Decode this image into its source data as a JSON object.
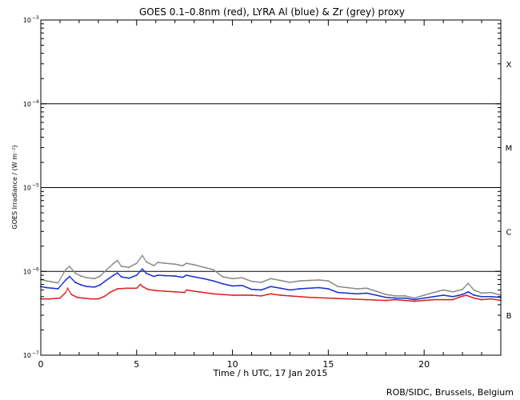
{
  "chart_data": {
    "type": "scatter",
    "title": "GOES 0.1–0.8nm (red), LYRA Al (blue) & Zr (grey) proxy",
    "xlabel": "Time / h UTC, 17 Jan 2015",
    "ylabel": "GOES Irradiance / (W m⁻²)",
    "xlim": [
      0,
      24
    ],
    "ylim": [
      1e-07,
      0.001
    ],
    "yscale": "log",
    "x_ticks": [
      0,
      5,
      10,
      15,
      20
    ],
    "y_tick_exponents": [
      -7,
      -6,
      -5,
      -4,
      -3
    ],
    "y_tick_base": "10",
    "grid": "flare-class lines at 1e-6, 1e-5, 1e-4",
    "flare_classes": [
      {
        "label": "B",
        "y": 3e-07
      },
      {
        "label": "C",
        "y": 3e-06
      },
      {
        "label": "M",
        "y": 3e-05
      },
      {
        "label": "X",
        "y": 0.0003
      }
    ],
    "class_lines": [
      1e-06,
      1e-05,
      0.0001
    ],
    "series": [
      {
        "color": "#e02020",
        "x": [
          0,
          0.5,
          1.0,
          1.3,
          1.4,
          1.6,
          1.9,
          2.2,
          2.6,
          3.0,
          3.3,
          3.6,
          4.0,
          4.5,
          5.0,
          5.2,
          5.3,
          5.6,
          6.0,
          6.5,
          7.0,
          7.5,
          7.6,
          8.0,
          9.0,
          10.0,
          11.0,
          11.5,
          12.0,
          12.5,
          13.0,
          14.0,
          15.0,
          16.0,
          17.0,
          18.0,
          18.5,
          19.0,
          19.5,
          20.0,
          20.5,
          21.0,
          21.5,
          21.8,
          22.2,
          22.6,
          23.0,
          23.5,
          24.0
        ],
        "values": [
          4.7e-07,
          4.7e-07,
          4.8e-07,
          5.6e-07,
          6.3e-07,
          5.3e-07,
          4.9e-07,
          4.8e-07,
          4.7e-07,
          4.7e-07,
          5e-07,
          5.6e-07,
          6.2e-07,
          6.3e-07,
          6.3e-07,
          7e-07,
          6.6e-07,
          6.1e-07,
          5.9e-07,
          5.8e-07,
          5.7e-07,
          5.6e-07,
          6e-07,
          5.8e-07,
          5.4e-07,
          5.2e-07,
          5.2e-07,
          5.1e-07,
          5.4e-07,
          5.2e-07,
          5.1e-07,
          4.9e-07,
          4.8e-07,
          4.7e-07,
          4.6e-07,
          4.5e-07,
          4.6e-07,
          4.5e-07,
          4.4e-07,
          4.5e-07,
          4.6e-07,
          4.6e-07,
          4.6e-07,
          4.9e-07,
          5.2e-07,
          4.8e-07,
          4.6e-07,
          4.7e-07,
          4.5e-07
        ]
      },
      {
        "color": "#1a2fd6",
        "x": [
          0,
          0.3,
          0.6,
          0.9,
          1.3,
          1.5,
          1.8,
          2.1,
          2.4,
          2.8,
          3.1,
          3.4,
          3.8,
          4.0,
          4.2,
          4.6,
          5.0,
          5.3,
          5.5,
          5.9,
          6.1,
          6.5,
          7.0,
          7.4,
          7.6,
          8.0,
          8.5,
          9.0,
          9.5,
          10.0,
          10.5,
          11.0,
          11.5,
          12.0,
          12.5,
          13.0,
          13.5,
          14.0,
          14.5,
          15.0,
          15.5,
          16.0,
          16.5,
          17.0,
          17.5,
          18.0,
          18.5,
          19.0,
          19.5,
          20.0,
          20.5,
          21.0,
          21.5,
          22.0,
          22.3,
          22.6,
          23.0,
          23.5,
          24.0
        ],
        "values": [
          6.6e-07,
          6.4e-07,
          6.3e-07,
          6.2e-07,
          7.9e-07,
          8.7e-07,
          7.4e-07,
          6.9e-07,
          6.6e-07,
          6.5e-07,
          6.9e-07,
          7.8e-07,
          9e-07,
          9.6e-07,
          8.6e-07,
          8.3e-07,
          9e-07,
          1.07e-06,
          9.5e-07,
          8.7e-07,
          9e-07,
          8.9e-07,
          8.8e-07,
          8.5e-07,
          9e-07,
          8.6e-07,
          8.2e-07,
          7.7e-07,
          7.1e-07,
          6.7e-07,
          6.8e-07,
          6.1e-07,
          6e-07,
          6.6e-07,
          6.3e-07,
          6e-07,
          6.2e-07,
          6.3e-07,
          6.4e-07,
          6.2e-07,
          5.6e-07,
          5.5e-07,
          5.4e-07,
          5.5e-07,
          5.2e-07,
          4.9e-07,
          4.8e-07,
          4.8e-07,
          4.6e-07,
          4.8e-07,
          5e-07,
          5.2e-07,
          5e-07,
          5.3e-07,
          5.7e-07,
          5.2e-07,
          5e-07,
          5e-07,
          4.9e-07
        ]
      },
      {
        "color": "#8a8a8a",
        "x": [
          0,
          0.3,
          0.6,
          0.9,
          1.3,
          1.5,
          1.8,
          2.1,
          2.4,
          2.8,
          3.1,
          3.4,
          3.8,
          4.0,
          4.2,
          4.6,
          5.0,
          5.3,
          5.5,
          5.9,
          6.1,
          6.5,
          7.0,
          7.4,
          7.6,
          8.0,
          8.5,
          9.0,
          9.5,
          10.0,
          10.5,
          11.0,
          11.5,
          12.0,
          12.5,
          13.0,
          13.5,
          14.0,
          14.5,
          15.0,
          15.5,
          16.0,
          16.5,
          17.0,
          17.5,
          18.0,
          18.5,
          19.0,
          19.5,
          20.0,
          20.5,
          21.0,
          21.5,
          22.0,
          22.3,
          22.6,
          23.0,
          23.5,
          24.0
        ],
        "values": [
          8e-07,
          7.7e-07,
          7.5e-07,
          7.3e-07,
          1.05e-06,
          1.15e-06,
          9.5e-07,
          8.8e-07,
          8.4e-07,
          8.2e-07,
          8.8e-07,
          1.03e-06,
          1.25e-06,
          1.35e-06,
          1.15e-06,
          1.12e-06,
          1.25e-06,
          1.55e-06,
          1.3e-06,
          1.17e-06,
          1.28e-06,
          1.25e-06,
          1.22e-06,
          1.17e-06,
          1.25e-06,
          1.2e-06,
          1.12e-06,
          1.05e-06,
          8.6e-07,
          8.2e-07,
          8.4e-07,
          7.6e-07,
          7.4e-07,
          8.2e-07,
          7.8e-07,
          7.4e-07,
          7.7e-07,
          7.8e-07,
          7.9e-07,
          7.7e-07,
          6.6e-07,
          6.4e-07,
          6.2e-07,
          6.3e-07,
          5.8e-07,
          5.3e-07,
          5.1e-07,
          5.1e-07,
          4.8e-07,
          5.2e-07,
          5.6e-07,
          6e-07,
          5.7e-07,
          6.1e-07,
          7.2e-07,
          6e-07,
          5.5e-07,
          5.6e-07,
          5.2e-07
        ]
      }
    ]
  },
  "footer": "ROB/SIDC, Brussels, Belgium"
}
